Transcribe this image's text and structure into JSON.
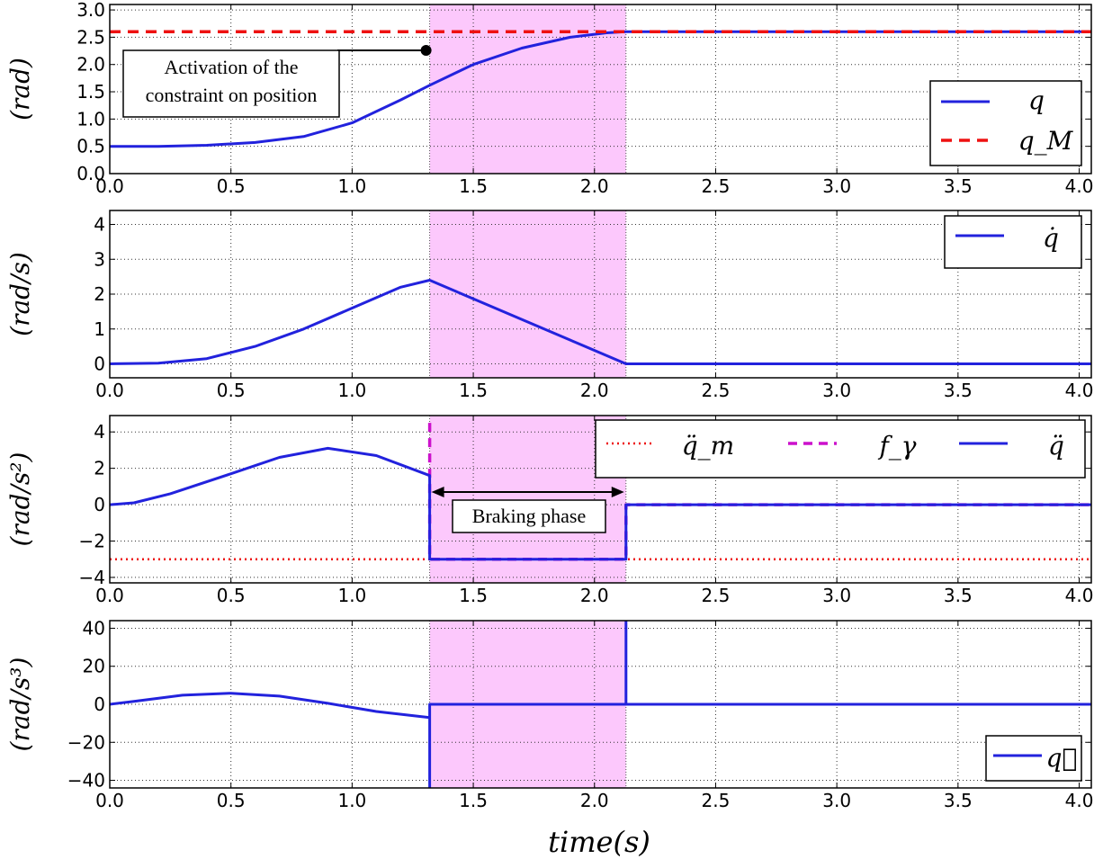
{
  "colors": {
    "signal": "#2222dd",
    "limit": "#ee1111",
    "phase_fill": "#fcc8fc",
    "f_gamma": "#cc11cc"
  },
  "shared": {
    "xlabel": "time(s)",
    "xlim": [
      0.0,
      4.05
    ],
    "xticks": [
      "0.0",
      "0.5",
      "1.0",
      "1.5",
      "2.0",
      "2.5",
      "3.0",
      "3.5",
      "4.0"
    ],
    "braking_interval": [
      1.32,
      2.13
    ],
    "grid": true
  },
  "chart_data": [
    {
      "type": "line",
      "ylabel": "(rad)",
      "ylim": [
        0.0,
        3.1
      ],
      "yticks": [
        "0.0",
        "0.5",
        "1.0",
        "1.5",
        "2.0",
        "2.5",
        "3.0"
      ],
      "legend": "bottom-right",
      "series": [
        {
          "name": "q",
          "style": "solid",
          "x": [
            0.0,
            0.2,
            0.4,
            0.6,
            0.8,
            1.0,
            1.2,
            1.32,
            1.5,
            1.7,
            1.9,
            2.05,
            2.13,
            4.05
          ],
          "y": [
            0.5,
            0.5,
            0.52,
            0.57,
            0.68,
            0.93,
            1.35,
            1.62,
            2.0,
            2.3,
            2.5,
            2.58,
            2.6,
            2.6
          ]
        },
        {
          "name": "q_M",
          "style": "dashed",
          "x": [
            0.0,
            4.05
          ],
          "y": [
            2.6,
            2.6
          ]
        }
      ],
      "annotation": {
        "lines": [
          "Activation of the",
          "constraint on position"
        ],
        "x": 1.32,
        "y": 2.3
      }
    },
    {
      "type": "line",
      "ylabel": "(rad/s)",
      "ylim": [
        -0.4,
        4.4
      ],
      "yticks": [
        "0",
        "1",
        "2",
        "3",
        "4"
      ],
      "legend": "top-right",
      "series": [
        {
          "name": "q̇",
          "style": "solid",
          "x": [
            0.0,
            0.2,
            0.4,
            0.6,
            0.8,
            1.0,
            1.2,
            1.32,
            2.13,
            4.05
          ],
          "y": [
            0.0,
            0.02,
            0.15,
            0.5,
            1.0,
            1.6,
            2.2,
            2.4,
            0.0,
            0.0
          ]
        }
      ]
    },
    {
      "type": "line",
      "ylabel": "(rad/s²)",
      "ylim": [
        -4.3,
        4.9
      ],
      "yticks": [
        "−4",
        "−2",
        "0",
        "2",
        "4"
      ],
      "legend": "top-right",
      "series": [
        {
          "name": "q̈_m",
          "style": "dotted",
          "x": [
            0.0,
            4.05
          ],
          "y": [
            -3.0,
            -3.0
          ]
        },
        {
          "name": "f_γ",
          "style": "dashed",
          "x": [
            1.32,
            1.32,
            1.32,
            2.13,
            2.13,
            4.05
          ],
          "y": [
            4.5,
            1.5,
            -3.0,
            -3.0,
            0.0,
            0.0
          ]
        },
        {
          "name": "q̈",
          "style": "solid",
          "x": [
            0.0,
            0.1,
            0.25,
            0.5,
            0.7,
            0.9,
            1.1,
            1.32,
            1.32,
            2.13,
            2.13,
            4.05
          ],
          "y": [
            0.0,
            0.1,
            0.6,
            1.7,
            2.6,
            3.1,
            2.7,
            1.6,
            -3.0,
            -3.0,
            0.0,
            0.0
          ]
        }
      ],
      "annotation": {
        "text": "Braking phase"
      }
    },
    {
      "type": "line",
      "ylabel": "(rad/s³)",
      "ylim": [
        -44,
        44
      ],
      "yticks": [
        "−40",
        "−20",
        "0",
        "20",
        "40"
      ],
      "legend": "bottom-right",
      "series": [
        {
          "name": "q⃛",
          "style": "solid",
          "x": [
            0.0,
            0.1,
            0.3,
            0.5,
            0.7,
            0.9,
            1.1,
            1.32,
            1.32,
            1.32,
            2.13,
            2.13,
            2.13,
            4.05
          ],
          "y": [
            0.0,
            1.5,
            4.8,
            5.8,
            4.3,
            0.5,
            -3.8,
            -7.0,
            -44,
            0.0,
            0.0,
            44,
            0.0,
            0.0
          ]
        }
      ]
    }
  ]
}
